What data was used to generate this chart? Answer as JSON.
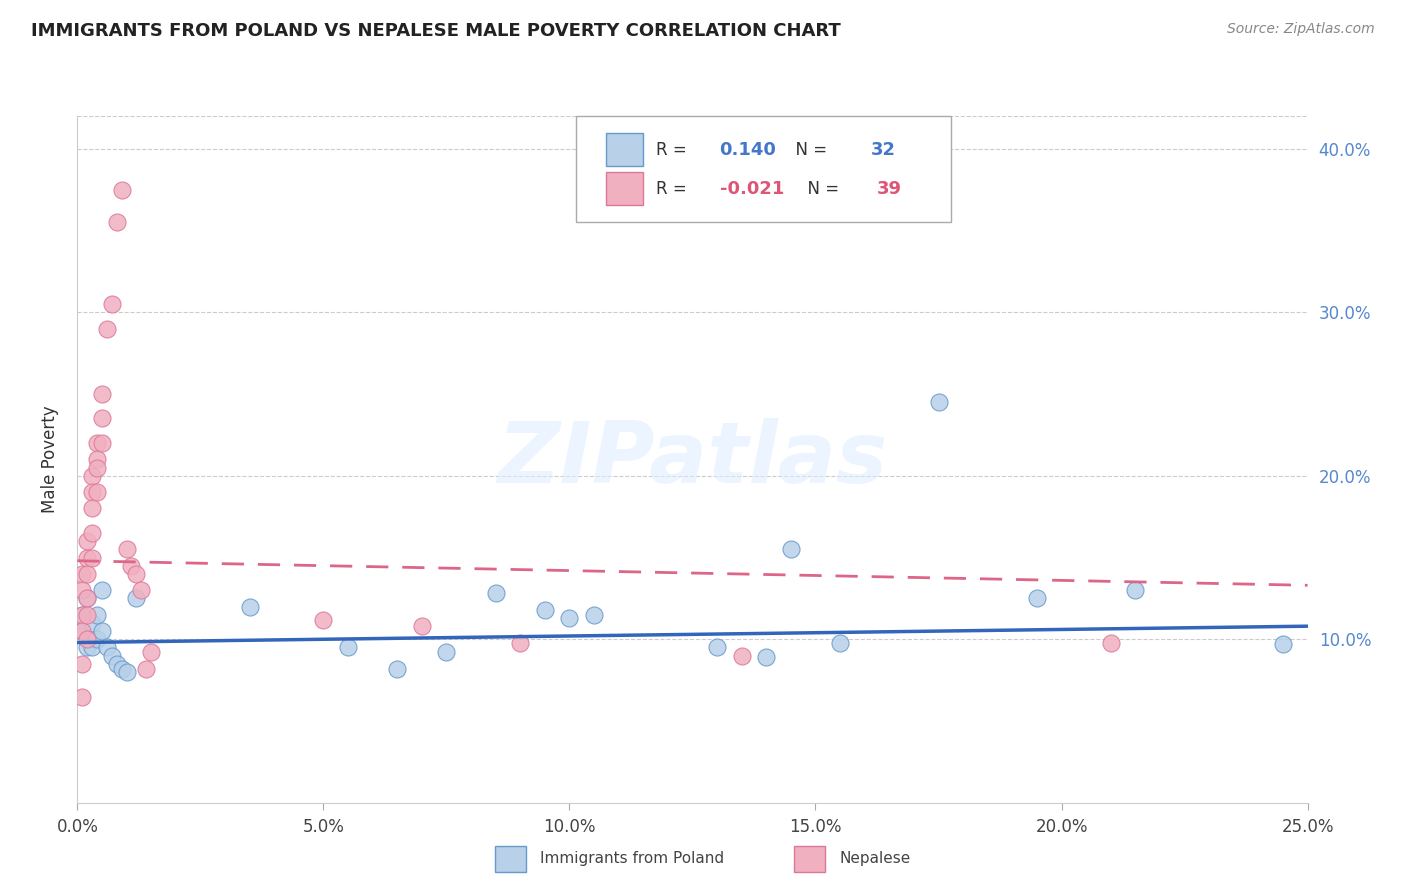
{
  "title": "IMMIGRANTS FROM POLAND VS NEPALESE MALE POVERTY CORRELATION CHART",
  "source": "Source: ZipAtlas.com",
  "ylabel": "Male Poverty",
  "legend1_label": "Immigrants from Poland",
  "legend2_label": "Nepalese",
  "r1_text": "0.140",
  "n1_text": "32",
  "r2_text": "-0.021",
  "n2_text": "39",
  "xlim": [
    0.0,
    0.25
  ],
  "ylim": [
    0.0,
    0.42
  ],
  "xtick_vals": [
    0.0,
    0.05,
    0.1,
    0.15,
    0.2,
    0.25
  ],
  "xtick_labels": [
    "0.0%",
    "5.0%",
    "10.0%",
    "15.0%",
    "20.0%",
    "25.0%"
  ],
  "ytick_vals": [
    0.1,
    0.2,
    0.3,
    0.4
  ],
  "ytick_labels": [
    "10.0%",
    "20.0%",
    "30.0%",
    "40.0%"
  ],
  "color_blue": "#b8d0e8",
  "color_pink": "#f0b0c0",
  "edge_blue": "#6699cc",
  "edge_pink": "#dd7799",
  "line_blue_color": "#3366bb",
  "line_pink_color": "#dd6688",
  "watermark": "ZIPatlas",
  "blue_x": [
    0.001,
    0.001,
    0.002,
    0.002,
    0.003,
    0.003,
    0.004,
    0.004,
    0.005,
    0.005,
    0.006,
    0.007,
    0.008,
    0.009,
    0.01,
    0.012,
    0.035,
    0.055,
    0.065,
    0.075,
    0.085,
    0.095,
    0.1,
    0.105,
    0.13,
    0.14,
    0.145,
    0.155,
    0.175,
    0.195,
    0.215,
    0.245
  ],
  "blue_y": [
    0.115,
    0.105,
    0.125,
    0.095,
    0.11,
    0.095,
    0.115,
    0.1,
    0.13,
    0.105,
    0.095,
    0.09,
    0.085,
    0.082,
    0.08,
    0.125,
    0.12,
    0.095,
    0.082,
    0.092,
    0.128,
    0.118,
    0.113,
    0.115,
    0.095,
    0.089,
    0.155,
    0.098,
    0.245,
    0.125,
    0.13,
    0.097
  ],
  "pink_x": [
    0.001,
    0.001,
    0.001,
    0.001,
    0.001,
    0.001,
    0.002,
    0.002,
    0.002,
    0.002,
    0.002,
    0.002,
    0.003,
    0.003,
    0.003,
    0.003,
    0.003,
    0.004,
    0.004,
    0.004,
    0.004,
    0.005,
    0.005,
    0.005,
    0.006,
    0.007,
    0.008,
    0.009,
    0.01,
    0.011,
    0.012,
    0.013,
    0.014,
    0.015,
    0.05,
    0.07,
    0.09,
    0.135,
    0.21
  ],
  "pink_y": [
    0.14,
    0.13,
    0.115,
    0.105,
    0.085,
    0.065,
    0.16,
    0.15,
    0.14,
    0.125,
    0.115,
    0.1,
    0.2,
    0.19,
    0.18,
    0.165,
    0.15,
    0.22,
    0.21,
    0.205,
    0.19,
    0.25,
    0.235,
    0.22,
    0.29,
    0.305,
    0.355,
    0.375,
    0.155,
    0.145,
    0.14,
    0.13,
    0.082,
    0.092,
    0.112,
    0.108,
    0.098,
    0.09,
    0.098
  ],
  "blue_trend_x": [
    0.0,
    0.25
  ],
  "blue_trend_y": [
    0.098,
    0.108
  ],
  "pink_trend_x": [
    0.0,
    0.25
  ],
  "pink_trend_y": [
    0.148,
    0.133
  ]
}
